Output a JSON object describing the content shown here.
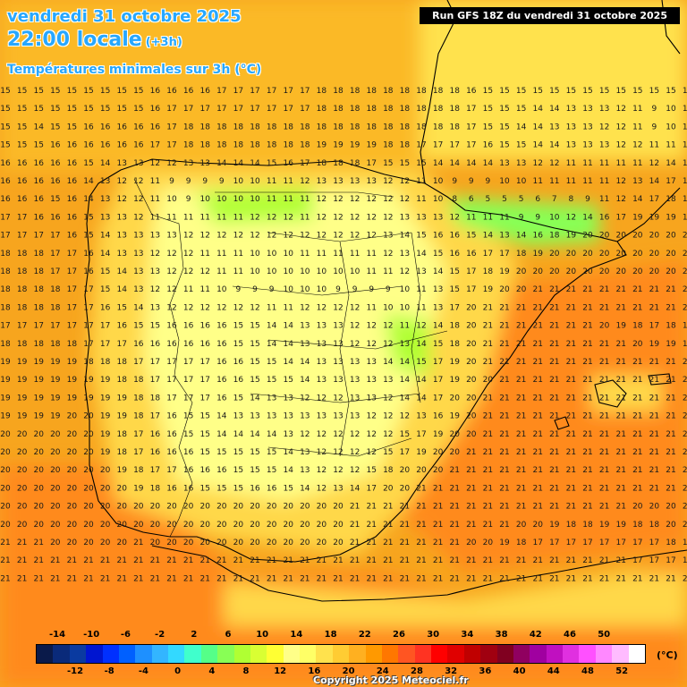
{
  "header": {
    "date_line": "vendredi 31 octobre 2025",
    "time_line": "22:00 locale",
    "offset": "(+3h)",
    "variable_line": "Températures minimales sur 3h (°C)",
    "run_info": "Run GFS 18Z du vendredi 31 octobre 2025"
  },
  "legend": {
    "unit": "(°C)",
    "top_labels": [
      "-14",
      "-10",
      "-6",
      "-2",
      "2",
      "6",
      "10",
      "14",
      "18",
      "22",
      "26",
      "30",
      "34",
      "38",
      "42",
      "46",
      "50"
    ],
    "bottom_labels": [
      "-12",
      "-8",
      "-4",
      "0",
      "4",
      "8",
      "12",
      "16",
      "20",
      "24",
      "28",
      "32",
      "36",
      "40",
      "44",
      "48",
      "52"
    ],
    "colors": [
      "#0a1a4a",
      "#0a2a7a",
      "#0a3aa0",
      "#0015d0",
      "#0030ff",
      "#0060ff",
      "#1e90ff",
      "#33b5ff",
      "#33d9ff",
      "#40ffcc",
      "#55ff88",
      "#88ff55",
      "#b0ff33",
      "#d9ff33",
      "#ffff33",
      "#ffff88",
      "#ffff66",
      "#ffe24d",
      "#ffcc33",
      "#ffb020",
      "#ff9900",
      "#ff7700",
      "#ff5522",
      "#ff3322",
      "#ff0000",
      "#e00000",
      "#c00000",
      "#a00010",
      "#800020",
      "#900060",
      "#a000a0",
      "#c010c0",
      "#e030e0",
      "#ff50ff",
      "#ff88ff",
      "#ffbbff",
      "#ffffff"
    ]
  },
  "footer": {
    "copyright": "Copyright 2025 Meteociel.fr"
  },
  "map_data": {
    "region": "Péninsule ibérique et Méditerranée occidentale",
    "grid_rows": [
      "15 15 15 15 15 15 15 15 15 16 16 16 16 17 17 17 17 17 17 18 18 18 18 18 18 18 18 18 16 15 15 15 15 15 15 15 15 15 15 15 15 15",
      "15 15 15 15 15 15 15 15 15 16 17 17 17 17 17 17 17 17 17 18 18 18 18 18 18 18 18 18 17 15 15 15 14 14 13 13 13 12 11 9 10 11",
      "15 15 14 15 15 16 16 16 16 16 17 18 18 18 18 18 18 18 18 18 18 18 18 18 18 18 18 18 17 15 15 14 14 13 13 13 12 12 11 9 10 11",
      "15 15 15 16 16 16 16 16 16 17 17 18 18 18 18 18 18 18 18 19 19 19 19 18 18 17 17 17 17 16 15 15 14 14 13 13 13 12 12 11 11 11",
      "16 16 16 16 16 15 14 13 13 12 12 13 13 14 14 14 15 16 17 18 18 18 17 15 15 15 14 14 14 14 13 13 12 12 11 11 11 11 11 12 14 14",
      "16 16 16 16 16 14 13 12 12 11 9 9 9 9 10 10 11 11 12 13 13 13 13 12 12 11 10 9 9 9 10 10 11 11 11 11 11 12 13 14 17 17",
      "16 16 16 15 16 14 13 12 12 11 10 9 10 10 10 10 11 11 11 12 12 12 12 12 12 11 10 8 6 5 5 5 6 7 8 9 11 12 14 17 18 18",
      "17 17 16 16 16 15 13 13 12 11 11 11 11 11 11 12 12 12 11 12 12 12 12 12 13 13 13 12 11 11 11 9 9 10 12 14 16 17 19 19 19 19",
      "17 17 17 17 16 15 14 13 13 13 13 12 12 12 12 12 12 12 12 12 12 12 12 13 14 15 16 16 15 14 13 14 16 18 19 20 20 20 20 20 20 20",
      "18 18 18 17 17 16 14 13 13 12 12 12 11 11 11 10 10 10 11 11 11 11 11 12 13 14 15 16 16 17 17 18 19 20 20 20 20 20 20 20 20 20",
      "18 18 18 17 17 16 15 14 13 13 12 12 12 11 11 10 10 10 10 10 10 10 11 11 12 13 14 15 17 18 19 20 20 20 20 20 20 20 20 20 20 20",
      "18 18 18 18 17 17 15 14 13 12 12 11 11 10 9 9 9 10 10 10 9 9 9 9 10 11 13 15 17 19 20 20 21 21 21 21 21 21 21 21 21 21",
      "18 18 18 18 17 17 16 15 14 13 12 12 12 12 12 12 11 11 12 12 12 12 11 10 10 11 13 17 20 21 21 21 21 21 21 21 21 21 21 21 21 21",
      "17 17 17 17 17 17 17 16 15 15 16 16 16 16 15 15 14 14 13 13 13 12 12 12 11 12 14 18 20 21 21 21 21 21 21 21 20 19 18 17 18 18",
      "18 18 18 18 18 17 17 17 16 16 16 16 16 16 15 15 14 14 13 13 13 12 12 12 13 14 15 18 20 21 21 21 21 21 21 21 21 21 20 19 19 19",
      "19 19 19 19 19 18 18 18 17 17 17 17 17 16 16 15 15 14 14 13 13 13 13 14 14 15 17 19 20 21 21 21 21 21 21 21 21 21 21 21 21 21",
      "19 19 19 19 19 19 19 18 18 17 17 17 17 16 16 15 15 15 14 13 13 13 13 13 14 14 17 19 20 20 21 21 21 21 21 21 21 21 21 21 21 21",
      "19 19 19 19 19 19 19 19 18 18 17 17 17 16 15 14 13 13 12 12 12 13 13 12 14 14 17 20 20 21 21 21 21 21 21 21 21 21 21 21 21 21",
      "19 19 19 19 20 20 19 19 18 17 16 15 15 14 13 13 13 13 13 13 13 13 12 12 12 13 16 19 20 21 21 21 21 21 21 21 21 21 21 21 21 21",
      "20 20 20 20 20 20 19 18 17 16 16 15 15 14 14 14 14 13 12 12 12 12 12 12 15 17 19 20 20 21 21 21 21 21 21 21 21 21 21 21 21 21",
      "20 20 20 20 20 20 19 18 17 16 16 16 15 15 15 15 15 14 13 12 12 12 12 15 17 19 20 20 21 21 21 21 21 21 21 21 21 21 21 21 21 21",
      "20 20 20 20 20 20 20 19 18 17 17 16 16 16 15 15 15 14 13 12 12 12 15 18 20 20 20 21 21 21 21 21 21 21 21 21 21 21 21 21 21 21",
      "20 20 20 20 20 20 20 20 19 18 16 16 15 15 15 16 16 15 14 12 13 14 17 20 20 21 21 21 21 21 21 21 21 21 21 21 21 21 21 21 21 21",
      "20 20 20 20 20 20 20 20 20 20 20 20 20 20 20 20 20 20 20 20 20 21 21 21 21 21 21 21 21 21 21 21 21 21 21 21 21 21 20 20 20 20",
      "20 20 20 20 20 20 20 20 20 20 20 20 20 20 20 20 20 20 20 20 20 21 21 21 21 21 21 21 21 21 21 20 20 19 18 18 19 19 18 18 20 20",
      "21 21 21 20 20 20 20 20 21 20 20 20 20 20 20 20 20 20 20 20 20 21 21 21 21 21 21 21 20 20 19 18 17 17 17 17 17 17 17 17 18 18",
      "21 21 21 21 21 21 21 21 21 21 21 21 21 21 21 21 21 21 21 21 21 21 21 21 21 21 21 21 21 21 21 21 21 21 21 21 21 21 17 17 17 17",
      "21 21 21 21 21 21 21 21 21 21 21 21 21 21 21 21 21 21 21 21 21 21 21 21 21 21 21 21 21 21 21 21 21 21 21 21 21 21 21 21 21 21"
    ]
  }
}
